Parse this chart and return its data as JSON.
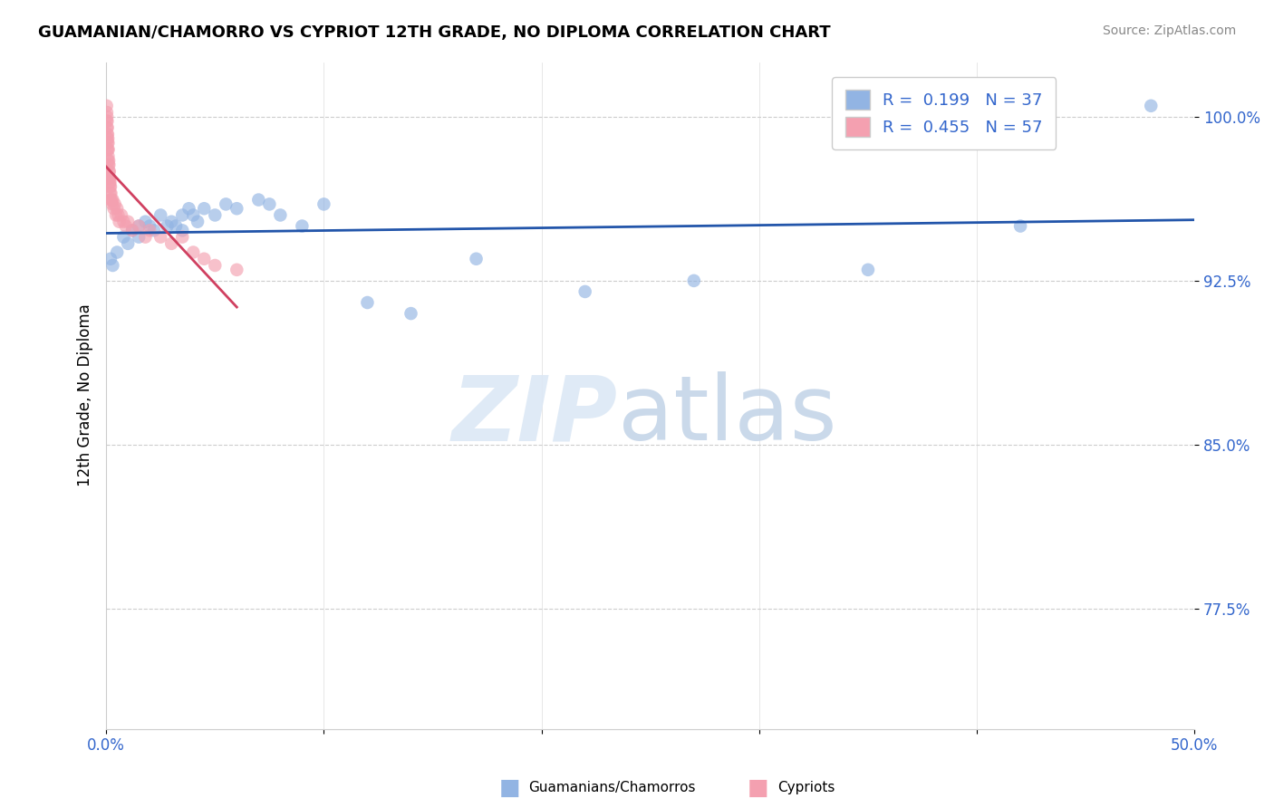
{
  "title": "GUAMANIAN/CHAMORRO VS CYPRIOT 12TH GRADE, NO DIPLOMA CORRELATION CHART",
  "source": "Source: ZipAtlas.com",
  "ylabel": "12th Grade, No Diploma",
  "xlim": [
    0.0,
    50.0
  ],
  "ylim": [
    72.0,
    102.5
  ],
  "ytick_positions": [
    77.5,
    85.0,
    92.5,
    100.0
  ],
  "ytick_labels": [
    "77.5%",
    "85.0%",
    "92.5%",
    "100.0%"
  ],
  "R_blue": 0.199,
  "N_blue": 37,
  "R_pink": 0.455,
  "N_pink": 57,
  "blue_color": "#92b4e3",
  "pink_color": "#f4a0b0",
  "blue_line_color": "#2255aa",
  "pink_line_color": "#d04060",
  "legend_label_blue": "Guamanians/Chamorros",
  "legend_label_pink": "Cypriots",
  "blue_scatter_x": [
    0.2,
    0.3,
    0.5,
    0.8,
    1.0,
    1.2,
    1.5,
    1.5,
    1.8,
    2.0,
    2.2,
    2.5,
    2.8,
    3.0,
    3.2,
    3.5,
    3.5,
    3.8,
    4.0,
    4.2,
    4.5,
    5.0,
    5.5,
    6.0,
    7.0,
    7.5,
    8.0,
    9.0,
    10.0,
    12.0,
    14.0,
    17.0,
    22.0,
    27.0,
    35.0,
    42.0,
    48.0
  ],
  "blue_scatter_y": [
    93.5,
    93.2,
    93.8,
    94.5,
    94.2,
    94.8,
    95.0,
    94.5,
    95.2,
    95.0,
    94.8,
    95.5,
    95.0,
    95.2,
    95.0,
    95.5,
    94.8,
    95.8,
    95.5,
    95.2,
    95.8,
    95.5,
    96.0,
    95.8,
    96.2,
    96.0,
    95.5,
    95.0,
    96.0,
    91.5,
    91.0,
    93.5,
    92.0,
    92.5,
    93.0,
    95.0,
    100.5
  ],
  "pink_scatter_x": [
    0.02,
    0.02,
    0.03,
    0.03,
    0.04,
    0.04,
    0.05,
    0.05,
    0.05,
    0.06,
    0.06,
    0.07,
    0.07,
    0.08,
    0.08,
    0.09,
    0.09,
    0.1,
    0.1,
    0.1,
    0.12,
    0.12,
    0.13,
    0.14,
    0.15,
    0.15,
    0.16,
    0.17,
    0.18,
    0.18,
    0.2,
    0.2,
    0.22,
    0.25,
    0.28,
    0.3,
    0.35,
    0.4,
    0.45,
    0.5,
    0.55,
    0.6,
    0.7,
    0.8,
    0.9,
    1.0,
    1.2,
    1.5,
    1.8,
    2.0,
    2.5,
    3.0,
    3.5,
    4.0,
    4.5,
    5.0,
    6.0
  ],
  "pink_scatter_y": [
    100.5,
    99.8,
    100.2,
    99.5,
    100.0,
    99.2,
    99.8,
    99.0,
    98.5,
    99.5,
    98.8,
    99.2,
    98.5,
    99.0,
    98.0,
    98.8,
    98.2,
    98.5,
    97.8,
    97.2,
    98.0,
    97.5,
    97.8,
    97.2,
    97.5,
    97.0,
    97.2,
    96.8,
    97.0,
    96.5,
    96.8,
    96.2,
    96.5,
    96.2,
    96.0,
    96.2,
    95.8,
    96.0,
    95.5,
    95.8,
    95.5,
    95.2,
    95.5,
    95.2,
    95.0,
    95.2,
    94.8,
    95.0,
    94.5,
    94.8,
    94.5,
    94.2,
    94.5,
    93.8,
    93.5,
    93.2,
    93.0
  ]
}
